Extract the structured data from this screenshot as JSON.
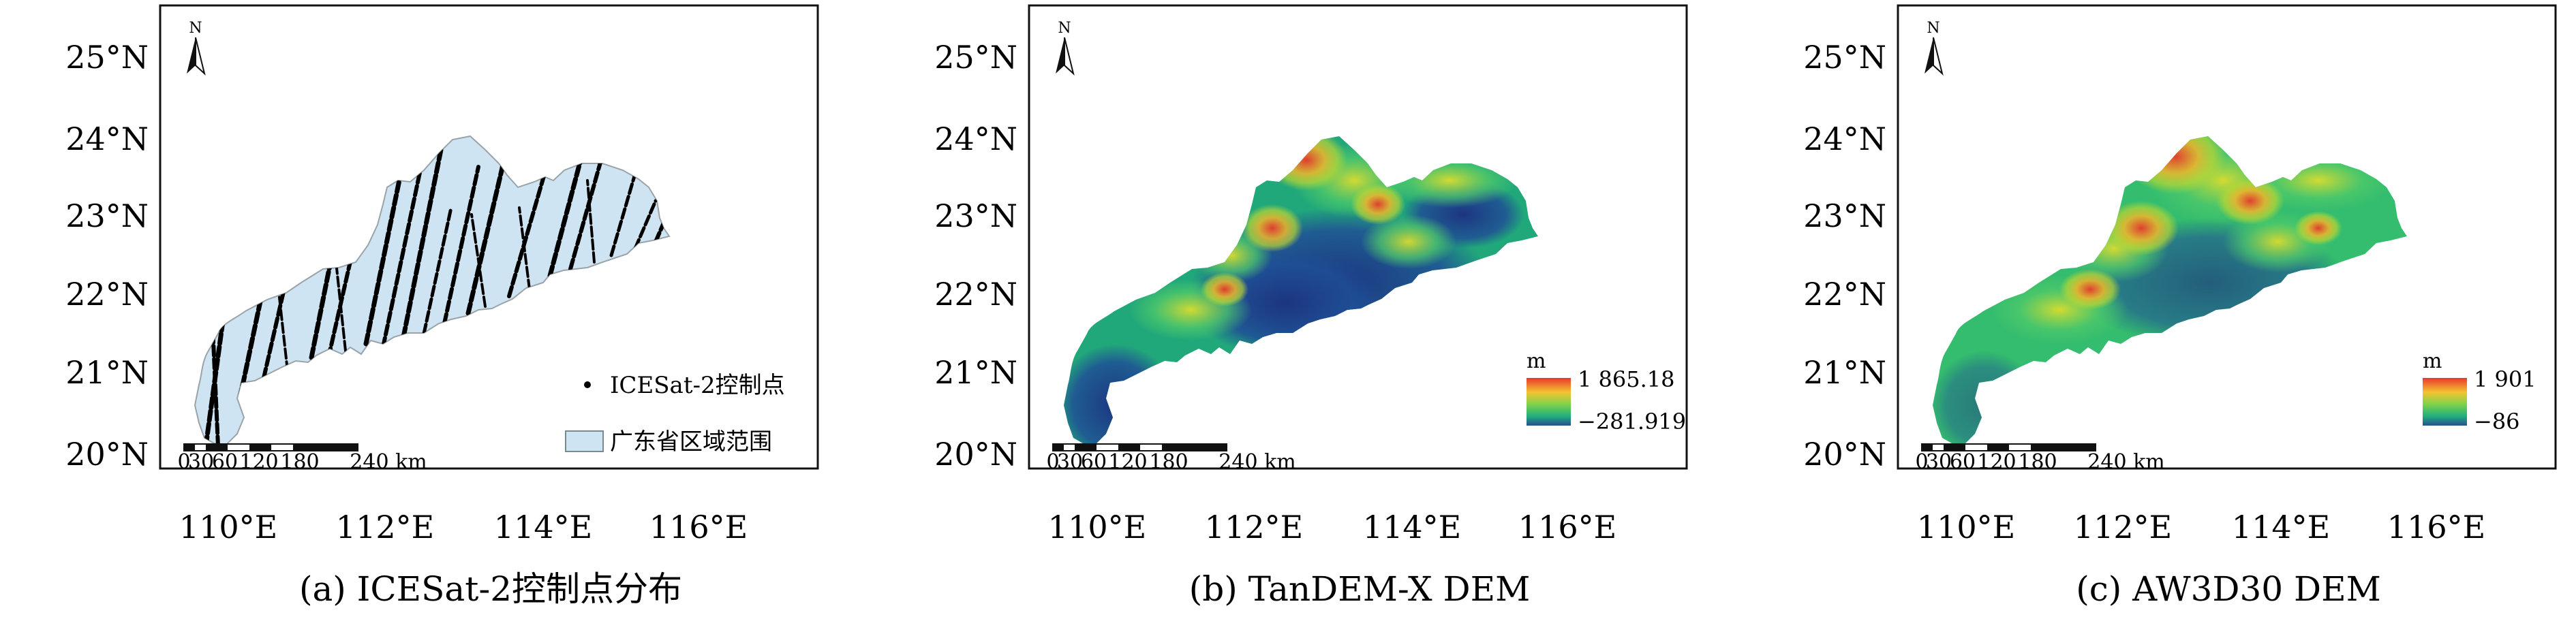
{
  "panels": [
    {
      "id": "a",
      "caption": "(a) ICESat-2控制点分布",
      "y_ticks": [
        "25°N",
        "24°N",
        "23°N",
        "22°N",
        "21°N",
        "20°N"
      ],
      "x_ticks": [
        "110°E",
        "112°E",
        "114°E",
        "116°E"
      ],
      "north_label": "N",
      "scale_labels": [
        "0",
        "30",
        "60",
        "120",
        "180",
        "240 km"
      ],
      "legend_points_label": "ICESat-2控制点",
      "legend_area_label": "广东省区域范围",
      "region_color": "#cfe4f3"
    },
    {
      "id": "b",
      "caption": "(b) TanDEM-X DEM",
      "y_ticks": [
        "25°N",
        "24°N",
        "23°N",
        "22°N",
        "21°N",
        "20°N"
      ],
      "x_ticks": [
        "110°E",
        "112°E",
        "114°E",
        "116°E"
      ],
      "north_label": "N",
      "scale_labels": [
        "0",
        "30",
        "60",
        "120",
        "180",
        "240 km"
      ],
      "colorbar_unit": "m",
      "colorbar_max": "1 865.18",
      "colorbar_min": "−281.919"
    },
    {
      "id": "c",
      "caption": "(c)  AW3D30 DEM",
      "y_ticks": [
        "25°N",
        "24°N",
        "23°N",
        "22°N",
        "21°N",
        "20°N"
      ],
      "x_ticks": [
        "110°E",
        "112°E",
        "114°E",
        "116°E"
      ],
      "north_label": "N",
      "scale_labels": [
        "0",
        "30",
        "60",
        "120",
        "180",
        "240 km"
      ],
      "colorbar_unit": "m",
      "colorbar_max": "1 901",
      "colorbar_min": "−86"
    }
  ],
  "colors": {
    "track_points": "#000000",
    "dem_low": "#1f3f8f",
    "dem_mid": "#27c47a",
    "dem_high": "#e8392b"
  }
}
